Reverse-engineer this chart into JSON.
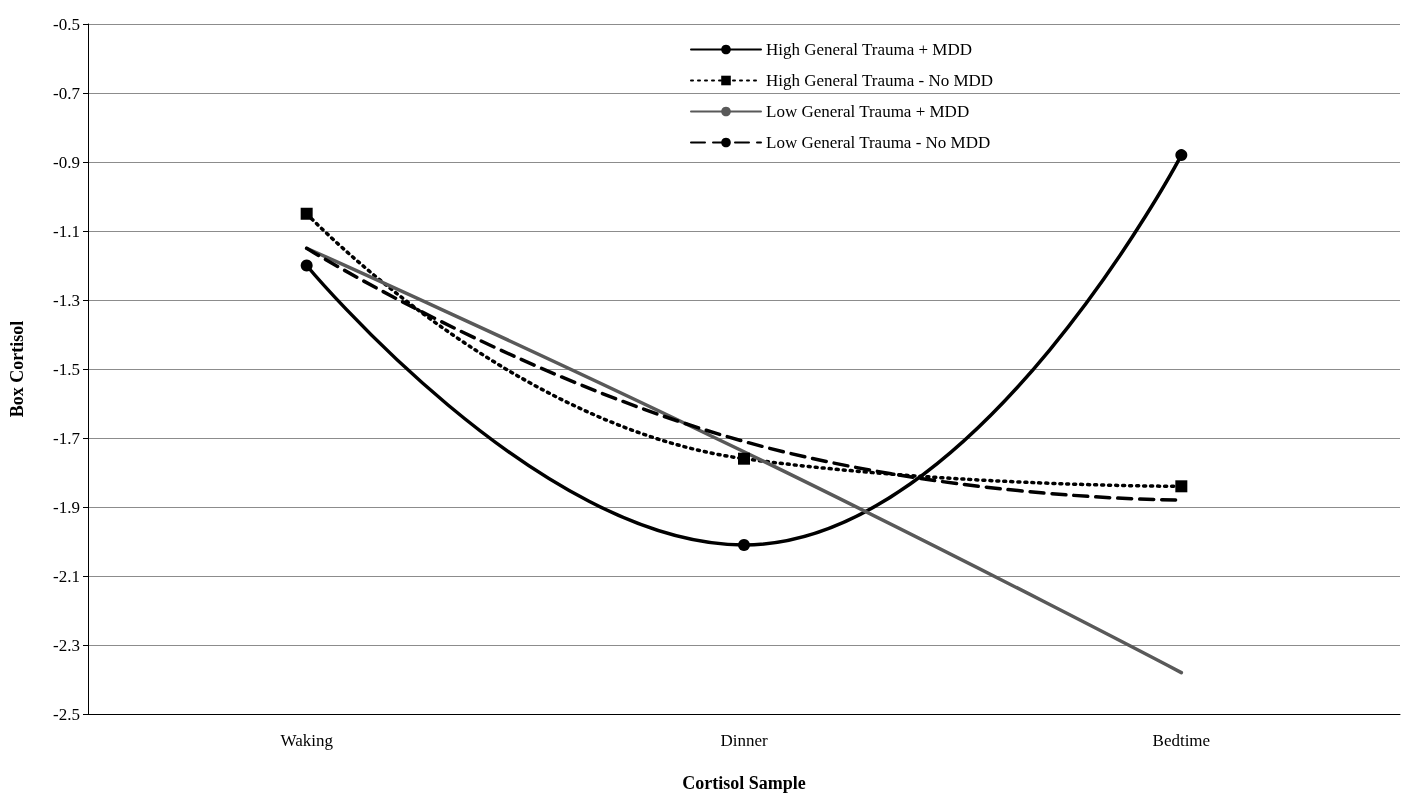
{
  "chart_data": {
    "type": "line",
    "xlabel": "Cortisol Sample",
    "ylabel": "Box Cortisol",
    "categories": [
      "Waking",
      "Dinner",
      "Bedtime"
    ],
    "series": [
      {
        "name": "High General Trauma + MDD",
        "color": "#000000",
        "values": [
          -1.2,
          -2.01,
          -0.88
        ],
        "marker": "circle",
        "line_style": "solid"
      },
      {
        "name": "High General Trauma - No MDD",
        "color": "#000000",
        "values": [
          -1.05,
          -1.76,
          -1.84
        ],
        "marker": "square",
        "line_style": "dotted"
      },
      {
        "name": "Low General Trauma + MDD",
        "color": "#595959",
        "values": [
          -1.15,
          -1.74,
          -2.38
        ],
        "marker": "none",
        "line_style": "solid"
      },
      {
        "name": "Low General Trauma - No MDD",
        "color": "#000000",
        "values": [
          -1.15,
          -1.71,
          -1.88
        ],
        "marker": "none",
        "line_style": "dashed"
      }
    ],
    "ylim": [
      -2.5,
      -0.5
    ],
    "yticks": [
      -2.5,
      -2.3,
      -2.1,
      -1.9,
      -1.7,
      -1.5,
      -1.3,
      -1.1,
      -0.9,
      -0.7,
      -0.5
    ],
    "grid": "y",
    "legend": "top right"
  }
}
